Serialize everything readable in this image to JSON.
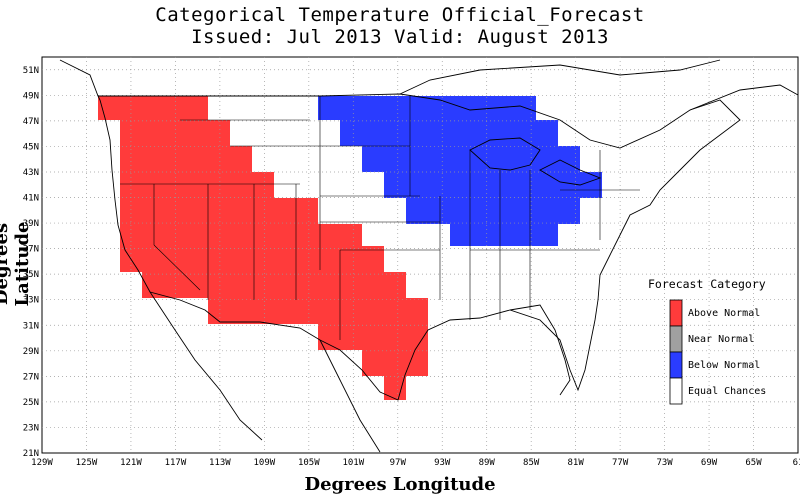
{
  "title": {
    "line1": "Categorical Temperature Official_Forecast",
    "line2": "Issued: Jul 2013 Valid: August 2013"
  },
  "axes": {
    "xlabel": "Degrees Longitude",
    "ylabel": "Degrees Latitude",
    "lon_ticks": [
      "129W",
      "125W",
      "121W",
      "117W",
      "113W",
      "109W",
      "105W",
      "101W",
      "97W",
      "93W",
      "89W",
      "85W",
      "81W",
      "77W",
      "73W",
      "69W",
      "65W",
      "61"
    ],
    "lat_ticks": [
      "21N",
      "23N",
      "25N",
      "27N",
      "29N",
      "31N",
      "33N",
      "35N",
      "37N",
      "39N",
      "41N",
      "43N",
      "45N",
      "47N",
      "49N",
      "51N"
    ],
    "lon_range": [
      -129,
      -61
    ],
    "lat_range": [
      21,
      52
    ],
    "grid": true
  },
  "legend": {
    "title": "Forecast Category",
    "items": [
      {
        "label": "Above Normal",
        "color": "#ff3b3b"
      },
      {
        "label": "Near Normal",
        "color": "#a0a0a0"
      },
      {
        "label": "Below Normal",
        "color": "#2a3cff"
      },
      {
        "label": "Equal Chances",
        "color": "#ffffff"
      }
    ]
  },
  "forecast_regions": {
    "above_normal_color": "#ff3b3b",
    "below_normal_color": "#2a3cff"
  }
}
